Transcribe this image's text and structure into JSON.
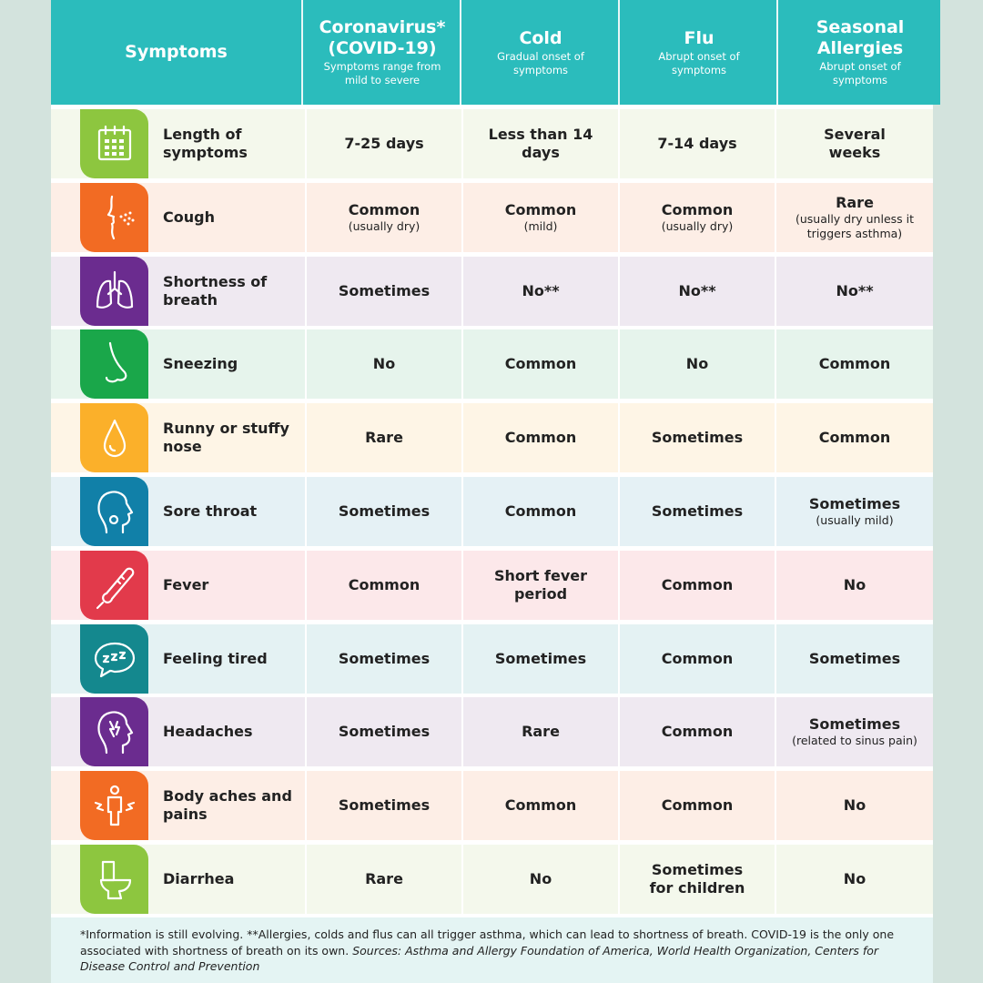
{
  "header": {
    "symptoms": "Symptoms",
    "columns": [
      {
        "title": "Coronavirus* (COVID-19)",
        "sub": "Symptoms range from mild to severe"
      },
      {
        "title": "Cold",
        "sub": "Gradual onset of symptoms"
      },
      {
        "title": "Flu",
        "sub": "Abrupt onset of symptoms"
      },
      {
        "title": "Seasonal Allergies",
        "sub": "Abrupt onset of symptoms"
      }
    ]
  },
  "rows": [
    {
      "label": "Length of symptoms",
      "icon": "calendar-icon",
      "color": "#8dc63f",
      "bg": "#f4f8ec",
      "cells": [
        {
          "v": "7-25 days"
        },
        {
          "v": "Less than 14 days"
        },
        {
          "v": "7-14 days"
        },
        {
          "v": "Several weeks"
        }
      ]
    },
    {
      "label": "Cough",
      "icon": "cough-face-icon",
      "color": "#f26b23",
      "bg": "#fdeee6",
      "cells": [
        {
          "v": "Common",
          "s": "(usually dry)"
        },
        {
          "v": "Common",
          "s": "(mild)"
        },
        {
          "v": "Common",
          "s": "(usually dry)"
        },
        {
          "v": "Rare",
          "s": "(usually dry unless it triggers asthma)"
        }
      ]
    },
    {
      "label": "Shortness of breath",
      "icon": "lungs-icon",
      "color": "#6b2c8f",
      "bg": "#efe9f1",
      "cells": [
        {
          "v": "Sometimes"
        },
        {
          "v": "No**"
        },
        {
          "v": "No**"
        },
        {
          "v": "No**"
        }
      ]
    },
    {
      "label": "Sneezing",
      "icon": "nose-icon",
      "color": "#1aa74a",
      "bg": "#e6f4ec",
      "cells": [
        {
          "v": "No"
        },
        {
          "v": "Common"
        },
        {
          "v": "No"
        },
        {
          "v": "Common"
        }
      ]
    },
    {
      "label": "Runny or stuffy nose",
      "icon": "droplet-icon",
      "color": "#fbb02a",
      "bg": "#fef5e6",
      "cells": [
        {
          "v": "Rare"
        },
        {
          "v": "Common"
        },
        {
          "v": "Sometimes"
        },
        {
          "v": "Common"
        }
      ]
    },
    {
      "label": "Sore throat",
      "icon": "throat-icon",
      "color": "#1180a8",
      "bg": "#e5f1f5",
      "cells": [
        {
          "v": "Sometimes"
        },
        {
          "v": "Common"
        },
        {
          "v": "Sometimes"
        },
        {
          "v": "Sometimes",
          "s": "(usually mild)"
        }
      ]
    },
    {
      "label": "Fever",
      "icon": "thermometer-icon",
      "color": "#e23a4b",
      "bg": "#fce8ea",
      "cells": [
        {
          "v": "Common"
        },
        {
          "v": "Short fever period"
        },
        {
          "v": "Common"
        },
        {
          "v": "No"
        }
      ]
    },
    {
      "label": "Feeling tired",
      "icon": "sleep-bubble-icon",
      "color": "#14888e",
      "bg": "#e4f2f3",
      "cells": [
        {
          "v": "Sometimes"
        },
        {
          "v": "Sometimes"
        },
        {
          "v": "Common"
        },
        {
          "v": "Sometimes"
        }
      ]
    },
    {
      "label": "Headaches",
      "icon": "headache-icon",
      "color": "#6b2c8f",
      "bg": "#efe9f1",
      "cells": [
        {
          "v": "Sometimes"
        },
        {
          "v": "Rare"
        },
        {
          "v": "Common"
        },
        {
          "v": "Sometimes",
          "s": "(related to sinus pain)"
        }
      ]
    },
    {
      "label": "Body aches and pains",
      "icon": "body-aches-icon",
      "color": "#f26b23",
      "bg": "#fdeee6",
      "cells": [
        {
          "v": "Sometimes"
        },
        {
          "v": "Common"
        },
        {
          "v": "Common"
        },
        {
          "v": "No"
        }
      ]
    },
    {
      "label": "Diarrhea",
      "icon": "toilet-icon",
      "color": "#8dc63f",
      "bg": "#f4f8ec",
      "cells": [
        {
          "v": "Rare"
        },
        {
          "v": "No"
        },
        {
          "v": "Sometimes for children"
        },
        {
          "v": "No"
        }
      ]
    }
  ],
  "footer": {
    "note": "*Information is still evolving. **Allergies, colds and flus can all trigger asthma, which can lead to shortness of breath. COVID-19 is the only one associated with shortness of breath on its own. ",
    "sources": "Sources: Asthma and Allergy Foundation of America, World Health Organization, Centers for Disease Control and Prevention"
  },
  "colors": {
    "header": "#2bbcbc",
    "background": "#d3e3dd",
    "footer": "#e4f4f3"
  }
}
